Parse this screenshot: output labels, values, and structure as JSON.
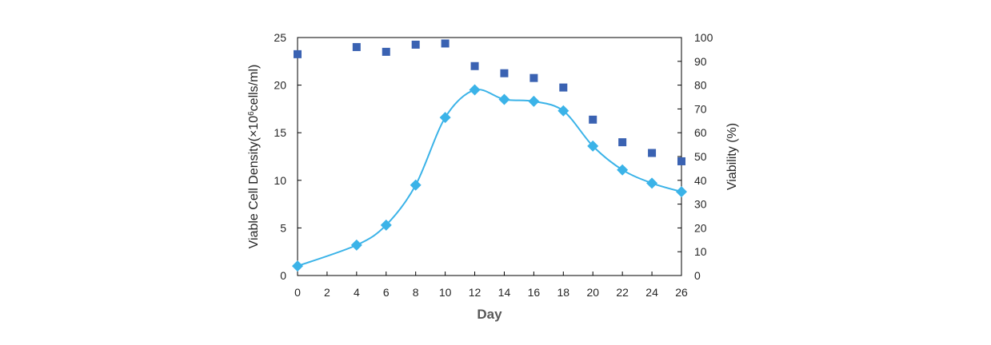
{
  "chart_data": {
    "type": "line",
    "xlabel": "Day",
    "ylabel_left": {
      "pre": "Viable Cell Density(×10",
      "sup": "6",
      "post": "cells/ml)"
    },
    "ylabel_right": "Viability (%)",
    "xlim": [
      0,
      26
    ],
    "ylim_left": [
      0,
      25
    ],
    "ylim_right": [
      0,
      100
    ],
    "x_ticks": [
      0,
      2,
      4,
      6,
      8,
      10,
      12,
      14,
      16,
      18,
      20,
      22,
      24,
      26
    ],
    "y_left_ticks": [
      0,
      5,
      10,
      15,
      20,
      25
    ],
    "y_right_ticks": [
      0,
      10,
      20,
      30,
      40,
      50,
      60,
      70,
      80,
      90,
      100
    ],
    "grid": false,
    "series": [
      {
        "axis": "left",
        "kind": "line-diamond",
        "color": "#3BB3E8",
        "points": [
          {
            "x": 0,
            "y": 1.0
          },
          {
            "x": 4,
            "y": 3.2
          },
          {
            "x": 6,
            "y": 5.3
          },
          {
            "x": 8,
            "y": 9.5
          },
          {
            "x": 10,
            "y": 16.6
          },
          {
            "x": 12,
            "y": 19.5
          },
          {
            "x": 14,
            "y": 18.5
          },
          {
            "x": 16,
            "y": 18.3
          },
          {
            "x": 18,
            "y": 17.3
          },
          {
            "x": 20,
            "y": 13.6
          },
          {
            "x": 22,
            "y": 11.1
          },
          {
            "x": 24,
            "y": 9.7
          },
          {
            "x": 26,
            "y": 8.8
          }
        ]
      },
      {
        "axis": "right",
        "kind": "scatter-square",
        "color": "#3A62B2",
        "points": [
          {
            "x": 0,
            "y": 93
          },
          {
            "x": 4,
            "y": 96
          },
          {
            "x": 6,
            "y": 94
          },
          {
            "x": 8,
            "y": 97
          },
          {
            "x": 10,
            "y": 97.5
          },
          {
            "x": 12,
            "y": 88
          },
          {
            "x": 14,
            "y": 85
          },
          {
            "x": 16,
            "y": 83
          },
          {
            "x": 18,
            "y": 79
          },
          {
            "x": 20,
            "y": 65.5
          },
          {
            "x": 22,
            "y": 56
          },
          {
            "x": 24,
            "y": 51.5
          },
          {
            "x": 26,
            "y": 48
          }
        ]
      }
    ]
  }
}
